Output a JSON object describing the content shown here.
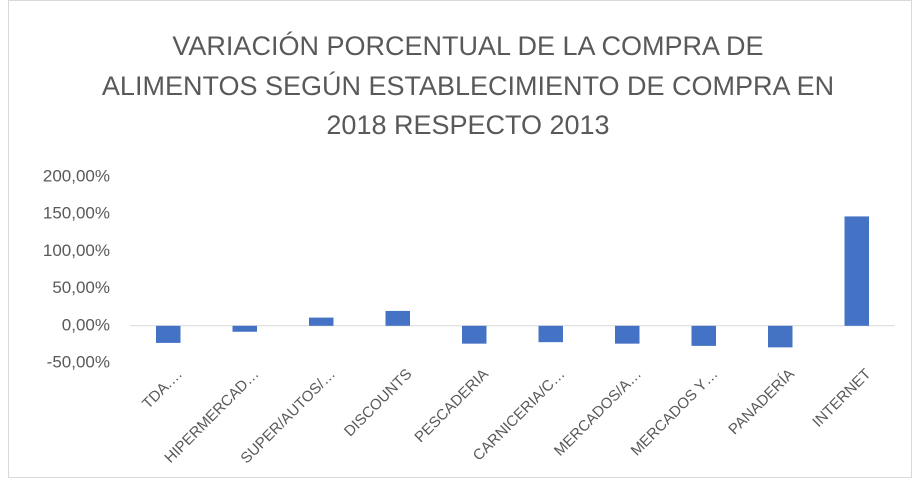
{
  "chart_data": {
    "type": "bar",
    "title": [
      "VARIACIÓN PORCENTUAL DE LA COMPRA DE",
      "ALIMENTOS SEGÚN ESTABLECIMIENTO DE COMPRA EN",
      "2018 RESPECTO 2013"
    ],
    "categories": [
      "TDA.…",
      "HIPERMERCAD…",
      "SUPER/AUTOS/…",
      "DISCOUNTS",
      "PESCADERIA",
      "CARNICERIA/C…",
      "MERCADOS/A…",
      "MERCADOS Y…",
      "PANADERÍA",
      "INTERNET"
    ],
    "values": [
      -23,
      -8,
      11,
      20,
      -24,
      -22,
      -24,
      -27,
      -29,
      147
    ],
    "color": "#4472c4",
    "ylim": [
      -50,
      200
    ],
    "yticks": [
      {
        "value": -50,
        "label": "-50,00%"
      },
      {
        "value": 0,
        "label": "0,00%"
      },
      {
        "value": 50,
        "label": "50,00%"
      },
      {
        "value": 100,
        "label": "100,00%"
      },
      {
        "value": 150,
        "label": "150,00%"
      },
      {
        "value": 200,
        "label": "200,00%"
      }
    ],
    "grid": false
  }
}
